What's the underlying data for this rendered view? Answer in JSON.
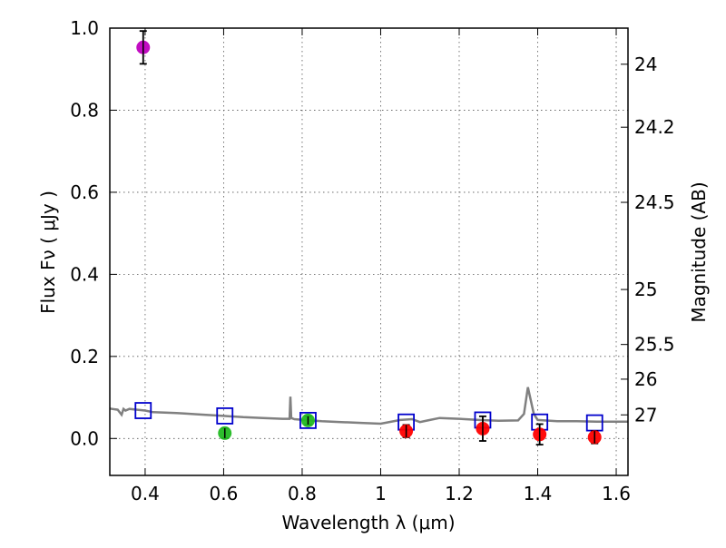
{
  "chart_data": {
    "type": "scatter",
    "xlabel": "Wavelength  λ (μm)",
    "ylabel_left": "Flux  Fν  ( μJy )",
    "ylabel_right": "Magnitude (AB)",
    "xlim": [
      0.31,
      1.63
    ],
    "ylim": [
      -0.09,
      1.0
    ],
    "x_ticks": [
      0.4,
      0.6,
      0.8,
      1.0,
      1.2,
      1.4,
      1.6
    ],
    "x_tick_labels": [
      "0.4",
      "0.6",
      "0.8",
      "1",
      "1.2",
      "1.4",
      "1.6"
    ],
    "y_ticks": [
      0.0,
      0.2,
      0.4,
      0.6,
      0.8,
      1.0
    ],
    "y_tick_labels": [
      "0.0",
      "0.2",
      "0.4",
      "0.6",
      "0.8",
      "1.0"
    ],
    "mag_ticks": [
      24,
      24.2,
      24.5,
      25,
      25.5,
      26,
      27
    ],
    "mag_tick_labels": [
      "24",
      "24.2",
      "24.5",
      "25",
      "25.5",
      "26",
      "27"
    ],
    "grid": true,
    "colors": {
      "spectrum": "#808080",
      "model_boxes": "#0000cc",
      "magenta": "#bf00bf",
      "green": "#22bb22",
      "red": "#ff0000",
      "errorbar": "#000000"
    },
    "observed_points": [
      {
        "x": 0.395,
        "y": 0.953,
        "err": 0.04,
        "color": "magenta"
      },
      {
        "x": 0.603,
        "y": 0.013,
        "err": 0.012,
        "color": "green"
      },
      {
        "x": 0.815,
        "y": 0.044,
        "err": 0.01,
        "color": "green"
      },
      {
        "x": 1.065,
        "y": 0.018,
        "err": 0.015,
        "color": "red"
      },
      {
        "x": 1.26,
        "y": 0.024,
        "err": 0.03,
        "color": "red"
      },
      {
        "x": 1.405,
        "y": 0.01,
        "err": 0.025,
        "color": "red"
      },
      {
        "x": 1.545,
        "y": 0.003,
        "err": 0.015,
        "color": "red"
      }
    ],
    "model_boxes": [
      {
        "x": 0.395,
        "y": 0.068
      },
      {
        "x": 0.603,
        "y": 0.055
      },
      {
        "x": 0.815,
        "y": 0.044
      },
      {
        "x": 1.065,
        "y": 0.04
      },
      {
        "x": 1.26,
        "y": 0.045
      },
      {
        "x": 1.405,
        "y": 0.04
      },
      {
        "x": 1.545,
        "y": 0.038
      }
    ],
    "spectrum": {
      "x": [
        0.31,
        0.33,
        0.34,
        0.345,
        0.35,
        0.36,
        0.38,
        0.4,
        0.42,
        0.45,
        0.48,
        0.5,
        0.55,
        0.6,
        0.65,
        0.7,
        0.75,
        0.768,
        0.77,
        0.772,
        0.78,
        0.82,
        0.85,
        0.9,
        0.95,
        1.0,
        1.05,
        1.08,
        1.1,
        1.12,
        1.15,
        1.2,
        1.25,
        1.3,
        1.35,
        1.365,
        1.375,
        1.39,
        1.4,
        1.45,
        1.5,
        1.55,
        1.6,
        1.63
      ],
      "y": [
        0.073,
        0.07,
        0.058,
        0.072,
        0.068,
        0.072,
        0.07,
        0.068,
        0.064,
        0.063,
        0.062,
        0.061,
        0.058,
        0.055,
        0.052,
        0.05,
        0.048,
        0.048,
        0.102,
        0.05,
        0.047,
        0.044,
        0.042,
        0.04,
        0.038,
        0.036,
        0.045,
        0.047,
        0.04,
        0.044,
        0.05,
        0.048,
        0.045,
        0.043,
        0.044,
        0.06,
        0.125,
        0.06,
        0.045,
        0.042,
        0.042,
        0.041,
        0.041,
        0.041
      ]
    }
  }
}
